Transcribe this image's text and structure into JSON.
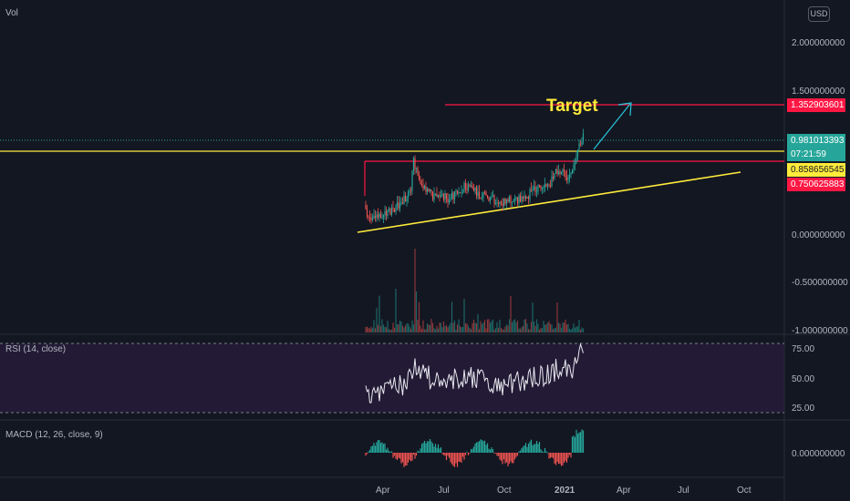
{
  "header": {
    "volume_label": "Vol",
    "currency_button": "USD"
  },
  "price_axis": {
    "ticks": [
      "2.000000000",
      "1.500000000",
      "0.000000000",
      "-0.500000000",
      "-1.000000000"
    ]
  },
  "price_tags": {
    "target_price": "1.352903601",
    "last_price": "0.981013393",
    "countdown": "07:21:59",
    "support_price": "0.858656545",
    "resistance_price": "0.750625883"
  },
  "annotation": {
    "target_text": "Target"
  },
  "rsi": {
    "label": "RSI (14, close)",
    "ticks": [
      "75.00",
      "50.00",
      "25.00"
    ]
  },
  "macd": {
    "label": "MACD (12, 26, close, 9)",
    "ticks": [
      "0.000000000"
    ]
  },
  "time_axis": {
    "labels": [
      "Apr",
      "Jul",
      "Oct",
      "2021",
      "Apr",
      "Jul",
      "Oct"
    ]
  },
  "colors": {
    "background": "#131722",
    "up": "#26a69a",
    "down": "#ef5350",
    "yellow_line": "#ffeb3b",
    "red_line": "#ff1744",
    "arrow": "#26c6da",
    "target_text": "#ffeb3b",
    "rsi_band": "#2a1e3d"
  }
}
